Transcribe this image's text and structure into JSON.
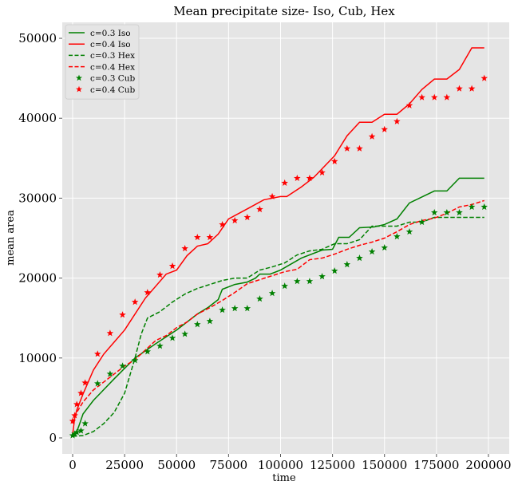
{
  "chart_data": {
    "type": "line",
    "title": "Mean precipitate size- Iso, Cub, Hex",
    "xlabel": "time",
    "ylabel": "mean area",
    "xlim": [
      -5000,
      210000
    ],
    "ylim": [
      -2000,
      52000
    ],
    "xticks": [
      0,
      25000,
      50000,
      75000,
      100000,
      125000,
      150000,
      175000,
      200000
    ],
    "yticks": [
      0,
      10000,
      20000,
      30000,
      40000,
      50000
    ],
    "grid": true,
    "legend_position": "upper-left",
    "series": [
      {
        "name": "c=0.3 Iso",
        "style": "solid",
        "color": "#008000",
        "points": [
          [
            0,
            300
          ],
          [
            1000,
            500
          ],
          [
            2000,
            800
          ],
          [
            3000,
            1500
          ],
          [
            5000,
            3000
          ],
          [
            10000,
            4700
          ],
          [
            20000,
            7400
          ],
          [
            30000,
            10000
          ],
          [
            40000,
            11800
          ],
          [
            50000,
            13500
          ],
          [
            60000,
            15500
          ],
          [
            65000,
            16300
          ],
          [
            70000,
            17300
          ],
          [
            72000,
            18600
          ],
          [
            78000,
            19200
          ],
          [
            84000,
            19500
          ],
          [
            88000,
            20000
          ],
          [
            90000,
            20500
          ],
          [
            95000,
            20500
          ],
          [
            100000,
            21000
          ],
          [
            110000,
            22500
          ],
          [
            120000,
            23500
          ],
          [
            125000,
            23600
          ],
          [
            128000,
            25100
          ],
          [
            133000,
            25100
          ],
          [
            138000,
            26300
          ],
          [
            145000,
            26400
          ],
          [
            150000,
            26700
          ],
          [
            156000,
            27400
          ],
          [
            162000,
            29400
          ],
          [
            174000,
            30900
          ],
          [
            180000,
            30900
          ],
          [
            186000,
            32500
          ],
          [
            198000,
            32500
          ]
        ]
      },
      {
        "name": "c=0.4 Iso",
        "style": "solid",
        "color": "#ff0000",
        "points": [
          [
            0,
            500
          ],
          [
            500,
            1500
          ],
          [
            1000,
            2500
          ],
          [
            2000,
            3500
          ],
          [
            5000,
            5500
          ],
          [
            10000,
            8500
          ],
          [
            15000,
            10500
          ],
          [
            20000,
            12000
          ],
          [
            25000,
            13500
          ],
          [
            35000,
            17500
          ],
          [
            45000,
            20500
          ],
          [
            50000,
            21000
          ],
          [
            55000,
            22800
          ],
          [
            60000,
            24000
          ],
          [
            65000,
            24300
          ],
          [
            70000,
            25500
          ],
          [
            75000,
            27400
          ],
          [
            85000,
            28800
          ],
          [
            92000,
            29800
          ],
          [
            100000,
            30200
          ],
          [
            103000,
            30200
          ],
          [
            110000,
            31400
          ],
          [
            116000,
            32600
          ],
          [
            126000,
            35300
          ],
          [
            132000,
            37800
          ],
          [
            138000,
            39500
          ],
          [
            144000,
            39500
          ],
          [
            150000,
            40500
          ],
          [
            156000,
            40500
          ],
          [
            162000,
            41800
          ],
          [
            168000,
            43600
          ],
          [
            174000,
            44900
          ],
          [
            180000,
            44900
          ],
          [
            186000,
            46100
          ],
          [
            192000,
            48800
          ],
          [
            198000,
            48800
          ]
        ]
      },
      {
        "name": "c=0.3 Hex",
        "style": "dashed",
        "color": "#008000",
        "points": [
          [
            0,
            200
          ],
          [
            5000,
            300
          ],
          [
            10000,
            800
          ],
          [
            15000,
            1800
          ],
          [
            20000,
            3200
          ],
          [
            25000,
            5600
          ],
          [
            30000,
            10000
          ],
          [
            33000,
            13000
          ],
          [
            36000,
            15000
          ],
          [
            42000,
            15800
          ],
          [
            48000,
            17000
          ],
          [
            54000,
            18000
          ],
          [
            60000,
            18700
          ],
          [
            66000,
            19200
          ],
          [
            72000,
            19700
          ],
          [
            78000,
            20000
          ],
          [
            84000,
            20000
          ],
          [
            90000,
            21000
          ],
          [
            96000,
            21400
          ],
          [
            102000,
            21900
          ],
          [
            108000,
            22900
          ],
          [
            114000,
            23400
          ],
          [
            120000,
            23600
          ],
          [
            126000,
            24300
          ],
          [
            132000,
            24300
          ],
          [
            138000,
            24800
          ],
          [
            144000,
            26500
          ],
          [
            150000,
            26500
          ],
          [
            156000,
            26500
          ],
          [
            162000,
            27000
          ],
          [
            168000,
            27000
          ],
          [
            174000,
            27600
          ],
          [
            186000,
            27600
          ],
          [
            198000,
            27600
          ]
        ]
      },
      {
        "name": "c=0.4 Hex",
        "style": "dashed",
        "color": "#ff0000",
        "points": [
          [
            0,
            1800
          ],
          [
            1000,
            2500
          ],
          [
            2000,
            3200
          ],
          [
            5000,
            4500
          ],
          [
            10000,
            6000
          ],
          [
            15000,
            7000
          ],
          [
            20000,
            8000
          ],
          [
            25000,
            9000
          ],
          [
            30000,
            9800
          ],
          [
            35000,
            11000
          ],
          [
            40000,
            12200
          ],
          [
            45000,
            12800
          ],
          [
            50000,
            13800
          ],
          [
            55000,
            14500
          ],
          [
            60000,
            15500
          ],
          [
            66000,
            16300
          ],
          [
            72000,
            17200
          ],
          [
            78000,
            18200
          ],
          [
            84000,
            19300
          ],
          [
            90000,
            19800
          ],
          [
            96000,
            20300
          ],
          [
            102000,
            20800
          ],
          [
            108000,
            21100
          ],
          [
            114000,
            22300
          ],
          [
            120000,
            22500
          ],
          [
            126000,
            23000
          ],
          [
            132000,
            23600
          ],
          [
            138000,
            24100
          ],
          [
            144000,
            24500
          ],
          [
            150000,
            25000
          ],
          [
            156000,
            25800
          ],
          [
            162000,
            26700
          ],
          [
            168000,
            27200
          ],
          [
            174000,
            27500
          ],
          [
            180000,
            28100
          ],
          [
            186000,
            28900
          ],
          [
            192000,
            29200
          ],
          [
            198000,
            29700
          ]
        ]
      },
      {
        "name": "c=0.3 Cub",
        "style": "star",
        "color": "#008000",
        "points": [
          [
            0,
            300
          ],
          [
            1000,
            500
          ],
          [
            2000,
            700
          ],
          [
            4000,
            900
          ],
          [
            6000,
            1800
          ],
          [
            12000,
            6800
          ],
          [
            18000,
            8000
          ],
          [
            24000,
            9000
          ],
          [
            30000,
            9700
          ],
          [
            36000,
            10800
          ],
          [
            42000,
            11500
          ],
          [
            48000,
            12500
          ],
          [
            54000,
            13000
          ],
          [
            60000,
            14200
          ],
          [
            66000,
            14600
          ],
          [
            72000,
            16000
          ],
          [
            78000,
            16200
          ],
          [
            84000,
            16200
          ],
          [
            90000,
            17400
          ],
          [
            96000,
            18100
          ],
          [
            102000,
            19000
          ],
          [
            108000,
            19600
          ],
          [
            114000,
            19600
          ],
          [
            120000,
            20200
          ],
          [
            126000,
            20900
          ],
          [
            132000,
            21700
          ],
          [
            138000,
            22500
          ],
          [
            144000,
            23300
          ],
          [
            150000,
            23800
          ],
          [
            156000,
            25200
          ],
          [
            162000,
            25800
          ],
          [
            168000,
            27000
          ],
          [
            174000,
            28200
          ],
          [
            180000,
            28200
          ],
          [
            186000,
            28200
          ],
          [
            192000,
            28900
          ],
          [
            198000,
            28900
          ]
        ]
      },
      {
        "name": "c=0.4 Cub",
        "style": "star",
        "color": "#ff0000",
        "points": [
          [
            0,
            2100
          ],
          [
            1000,
            2800
          ],
          [
            2000,
            4200
          ],
          [
            4000,
            5600
          ],
          [
            6000,
            6900
          ],
          [
            12000,
            10500
          ],
          [
            18000,
            13100
          ],
          [
            24000,
            15400
          ],
          [
            30000,
            17000
          ],
          [
            36000,
            18200
          ],
          [
            42000,
            20400
          ],
          [
            48000,
            21500
          ],
          [
            54000,
            23700
          ],
          [
            60000,
            25100
          ],
          [
            66000,
            25100
          ],
          [
            72000,
            26700
          ],
          [
            78000,
            27200
          ],
          [
            84000,
            27600
          ],
          [
            90000,
            28600
          ],
          [
            96000,
            30200
          ],
          [
            102000,
            31900
          ],
          [
            108000,
            32500
          ],
          [
            114000,
            32500
          ],
          [
            120000,
            33200
          ],
          [
            126000,
            34600
          ],
          [
            132000,
            36200
          ],
          [
            138000,
            36200
          ],
          [
            144000,
            37700
          ],
          [
            150000,
            38600
          ],
          [
            156000,
            39600
          ],
          [
            162000,
            41600
          ],
          [
            168000,
            42600
          ],
          [
            174000,
            42600
          ],
          [
            180000,
            42600
          ],
          [
            186000,
            43700
          ],
          [
            192000,
            43700
          ],
          [
            198000,
            45000
          ]
        ]
      }
    ]
  }
}
